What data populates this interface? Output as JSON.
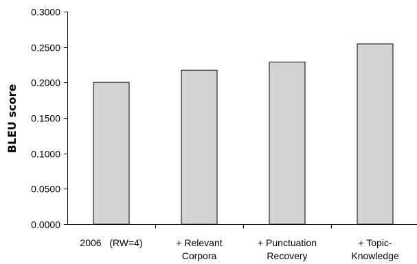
{
  "chart_data": {
    "type": "bar",
    "title": "",
    "xlabel": "",
    "ylabel": "BLEU score",
    "ylim": [
      0,
      0.3
    ],
    "yticks": [
      "0.0000",
      "0.0500",
      "0.1000",
      "0.1500",
      "0.2000",
      "0.2500",
      "0.3000"
    ],
    "ytick_values": [
      0,
      0.05,
      0.1,
      0.15,
      0.2,
      0.25,
      0.3
    ],
    "grid": false,
    "legend": "none",
    "categories": [
      [
        "2006   (RW=4)"
      ],
      [
        "+ Relevant",
        "Corpora"
      ],
      [
        "+ Punctuation",
        "Recovery"
      ],
      [
        "+ Topic-",
        "Knowledge"
      ]
    ],
    "values": [
      0.2002,
      0.2175,
      0.229,
      0.2545
    ],
    "colors": {
      "bar_fill": "#d3d3d3",
      "bar_stroke": "#000000"
    }
  }
}
